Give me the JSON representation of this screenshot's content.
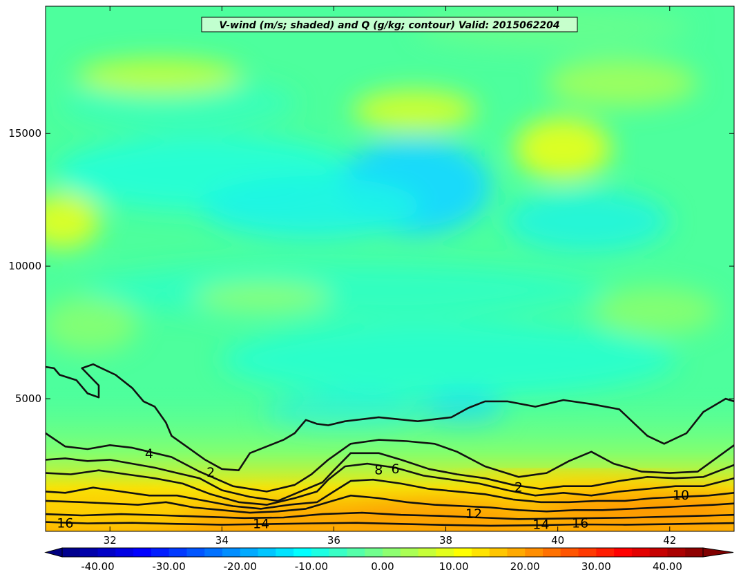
{
  "chart_data": {
    "type": "heatmap",
    "title": "V-wind (m/s; shaded) and Q (g/kg; contour) Valid: 2015062204",
    "x_ticks": [
      32,
      34,
      36,
      38,
      40,
      42
    ],
    "xlim": [
      30.85,
      43.15
    ],
    "y_ticks": [
      5000,
      10000,
      15000
    ],
    "ylim": [
      0,
      19800
    ],
    "colorbar": {
      "ticks": [
        "-40.00",
        "-30.00",
        "-20.00",
        "-10.00",
        "0.00",
        "10.00",
        "20.00",
        "30.00",
        "40.00"
      ],
      "range": [
        -45,
        45
      ],
      "step": 2.5,
      "extend": "both"
    },
    "contour_labels": [
      {
        "text": "16",
        "x": 31.2,
        "y": 300
      },
      {
        "text": "14",
        "x": 34.7,
        "y": 280
      },
      {
        "text": "12",
        "x": 38.5,
        "y": 650
      },
      {
        "text": "14",
        "x": 39.7,
        "y": 250
      },
      {
        "text": "16",
        "x": 40.4,
        "y": 300
      },
      {
        "text": "10",
        "x": 42.2,
        "y": 1350
      },
      {
        "text": "8",
        "x": 36.8,
        "y": 2300
      },
      {
        "text": "6",
        "x": 37.1,
        "y": 2350
      },
      {
        "text": "4",
        "x": 32.7,
        "y": 2920
      },
      {
        "text": "2",
        "x": 33.8,
        "y": 2220
      },
      {
        "text": "2",
        "x": 39.3,
        "y": 1650
      }
    ],
    "contour_lines": [
      {
        "level": 2,
        "points": [
          [
            30.85,
            6200
          ],
          [
            31.0,
            6150
          ],
          [
            31.1,
            5900
          ],
          [
            31.4,
            5700
          ],
          [
            31.6,
            5200
          ],
          [
            31.8,
            5050
          ],
          [
            31.8,
            5500
          ],
          [
            31.5,
            6150
          ],
          [
            31.7,
            6300
          ],
          [
            32.1,
            5900
          ],
          [
            32.4,
            5400
          ],
          [
            32.6,
            4900
          ],
          [
            32.8,
            4700
          ],
          [
            33.0,
            4100
          ],
          [
            33.1,
            3600
          ],
          [
            33.3,
            3300
          ],
          [
            33.7,
            2700
          ],
          [
            34.0,
            2350
          ],
          [
            34.3,
            2300
          ],
          [
            34.5,
            2950
          ],
          [
            34.8,
            3200
          ],
          [
            35.1,
            3450
          ],
          [
            35.3,
            3700
          ],
          [
            35.5,
            4200
          ],
          [
            35.7,
            4050
          ],
          [
            35.9,
            4000
          ],
          [
            36.2,
            4150
          ],
          [
            36.8,
            4300
          ],
          [
            37.5,
            4150
          ],
          [
            38.1,
            4300
          ],
          [
            38.4,
            4650
          ],
          [
            38.7,
            4900
          ],
          [
            39.1,
            4900
          ],
          [
            39.6,
            4700
          ],
          [
            40.1,
            4950
          ],
          [
            40.6,
            4800
          ],
          [
            41.1,
            4600
          ],
          [
            41.6,
            3600
          ],
          [
            41.9,
            3300
          ],
          [
            42.3,
            3700
          ],
          [
            42.6,
            4500
          ],
          [
            43.0,
            5000
          ],
          [
            43.15,
            4900
          ]
        ]
      },
      {
        "level": 4,
        "points": [
          [
            30.85,
            3700
          ],
          [
            31.2,
            3200
          ],
          [
            31.6,
            3100
          ],
          [
            32.0,
            3250
          ],
          [
            32.4,
            3150
          ],
          [
            32.7,
            3000
          ],
          [
            33.1,
            2800
          ],
          [
            33.6,
            2250
          ],
          [
            34.2,
            1700
          ],
          [
            34.8,
            1500
          ],
          [
            35.3,
            1750
          ],
          [
            35.6,
            2150
          ],
          [
            35.9,
            2700
          ],
          [
            36.3,
            3300
          ],
          [
            36.8,
            3450
          ],
          [
            37.3,
            3400
          ],
          [
            37.8,
            3300
          ],
          [
            38.2,
            3000
          ],
          [
            38.7,
            2450
          ],
          [
            39.3,
            2050
          ],
          [
            39.8,
            2200
          ],
          [
            40.2,
            2650
          ],
          [
            40.6,
            3000
          ],
          [
            41.0,
            2550
          ],
          [
            41.5,
            2250
          ],
          [
            42.0,
            2200
          ],
          [
            42.5,
            2250
          ],
          [
            43.15,
            3250
          ]
        ]
      },
      {
        "level": 6,
        "points": [
          [
            30.85,
            2700
          ],
          [
            31.2,
            2750
          ],
          [
            31.6,
            2650
          ],
          [
            32.0,
            2700
          ],
          [
            32.4,
            2550
          ],
          [
            32.8,
            2400
          ],
          [
            33.2,
            2200
          ],
          [
            33.6,
            2000
          ],
          [
            34.0,
            1550
          ],
          [
            34.5,
            1300
          ],
          [
            35.0,
            1150
          ],
          [
            35.4,
            1500
          ],
          [
            35.8,
            1850
          ],
          [
            36.0,
            2300
          ],
          [
            36.3,
            2950
          ],
          [
            36.8,
            2950
          ],
          [
            37.2,
            2700
          ],
          [
            37.7,
            2350
          ],
          [
            38.2,
            2150
          ],
          [
            38.7,
            2000
          ],
          [
            39.2,
            1750
          ],
          [
            39.7,
            1600
          ],
          [
            40.1,
            1700
          ],
          [
            40.6,
            1700
          ],
          [
            41.1,
            1900
          ],
          [
            41.6,
            2050
          ],
          [
            42.1,
            2000
          ],
          [
            42.6,
            2050
          ],
          [
            43.15,
            2500
          ]
        ]
      },
      {
        "level": 8,
        "points": [
          [
            30.85,
            2200
          ],
          [
            31.3,
            2150
          ],
          [
            31.8,
            2300
          ],
          [
            32.3,
            2150
          ],
          [
            32.8,
            2000
          ],
          [
            33.3,
            1800
          ],
          [
            33.8,
            1400
          ],
          [
            34.3,
            1100
          ],
          [
            34.8,
            1000
          ],
          [
            35.3,
            1250
          ],
          [
            35.7,
            1500
          ],
          [
            35.9,
            1950
          ],
          [
            36.2,
            2450
          ],
          [
            36.6,
            2550
          ],
          [
            37.1,
            2400
          ],
          [
            37.6,
            2100
          ],
          [
            38.1,
            1950
          ],
          [
            38.6,
            1800
          ],
          [
            39.1,
            1550
          ],
          [
            39.6,
            1350
          ],
          [
            40.1,
            1450
          ],
          [
            40.6,
            1350
          ],
          [
            41.1,
            1500
          ],
          [
            41.6,
            1600
          ],
          [
            42.1,
            1700
          ],
          [
            42.6,
            1700
          ],
          [
            43.15,
            2000
          ]
        ]
      },
      {
        "level": 10,
        "points": [
          [
            30.85,
            1500
          ],
          [
            31.2,
            1450
          ],
          [
            31.7,
            1650
          ],
          [
            32.2,
            1500
          ],
          [
            32.7,
            1350
          ],
          [
            33.2,
            1350
          ],
          [
            33.7,
            1150
          ],
          [
            34.2,
            950
          ],
          [
            34.7,
            850
          ],
          [
            35.2,
            1000
          ],
          [
            35.7,
            1100
          ],
          [
            36.0,
            1500
          ],
          [
            36.3,
            1900
          ],
          [
            36.7,
            1950
          ],
          [
            37.2,
            1800
          ],
          [
            37.7,
            1600
          ],
          [
            38.2,
            1500
          ],
          [
            38.7,
            1400
          ],
          [
            39.2,
            1200
          ],
          [
            39.7,
            1100
          ],
          [
            40.2,
            1100
          ],
          [
            40.7,
            1150
          ],
          [
            41.2,
            1150
          ],
          [
            41.7,
            1250
          ],
          [
            42.2,
            1300
          ],
          [
            42.7,
            1350
          ],
          [
            43.15,
            1450
          ]
        ]
      },
      {
        "level": 12,
        "points": [
          [
            30.85,
            1150
          ],
          [
            31.5,
            1100
          ],
          [
            32.0,
            1050
          ],
          [
            32.5,
            1000
          ],
          [
            33.0,
            1100
          ],
          [
            33.5,
            900
          ],
          [
            34.0,
            800
          ],
          [
            34.5,
            700
          ],
          [
            35.0,
            750
          ],
          [
            35.5,
            850
          ],
          [
            35.9,
            1100
          ],
          [
            36.3,
            1350
          ],
          [
            36.8,
            1250
          ],
          [
            37.3,
            1100
          ],
          [
            37.8,
            1000
          ],
          [
            38.3,
            950
          ],
          [
            38.8,
            900
          ],
          [
            39.3,
            800
          ],
          [
            39.8,
            750
          ],
          [
            40.3,
            800
          ],
          [
            40.8,
            800
          ],
          [
            41.3,
            850
          ],
          [
            41.8,
            900
          ],
          [
            42.3,
            950
          ],
          [
            42.8,
            1000
          ],
          [
            43.15,
            1050
          ]
        ]
      },
      {
        "level": 14,
        "points": [
          [
            30.85,
            650
          ],
          [
            31.5,
            600
          ],
          [
            32.2,
            650
          ],
          [
            33.0,
            600
          ],
          [
            33.7,
            550
          ],
          [
            34.4,
            500
          ],
          [
            35.1,
            520
          ],
          [
            35.8,
            650
          ],
          [
            36.5,
            700
          ],
          [
            37.2,
            620
          ],
          [
            37.9,
            580
          ],
          [
            38.6,
            520
          ],
          [
            39.3,
            460
          ],
          [
            40.0,
            480
          ],
          [
            40.7,
            500
          ],
          [
            41.4,
            520
          ],
          [
            42.1,
            560
          ],
          [
            42.8,
            600
          ],
          [
            43.15,
            620
          ]
        ]
      },
      {
        "level": 16,
        "points": [
          [
            30.85,
            350
          ],
          [
            31.6,
            300
          ],
          [
            32.4,
            320
          ],
          [
            33.2,
            280
          ],
          [
            34.0,
            250
          ],
          [
            34.8,
            270
          ],
          [
            35.6,
            300
          ],
          [
            36.4,
            320
          ],
          [
            37.2,
            280
          ],
          [
            38.0,
            240
          ],
          [
            38.8,
            210
          ],
          [
            39.6,
            230
          ],
          [
            40.4,
            260
          ],
          [
            41.2,
            250
          ],
          [
            42.0,
            270
          ],
          [
            42.8,
            300
          ],
          [
            43.15,
            310
          ]
        ]
      }
    ],
    "colormap": "jet"
  }
}
